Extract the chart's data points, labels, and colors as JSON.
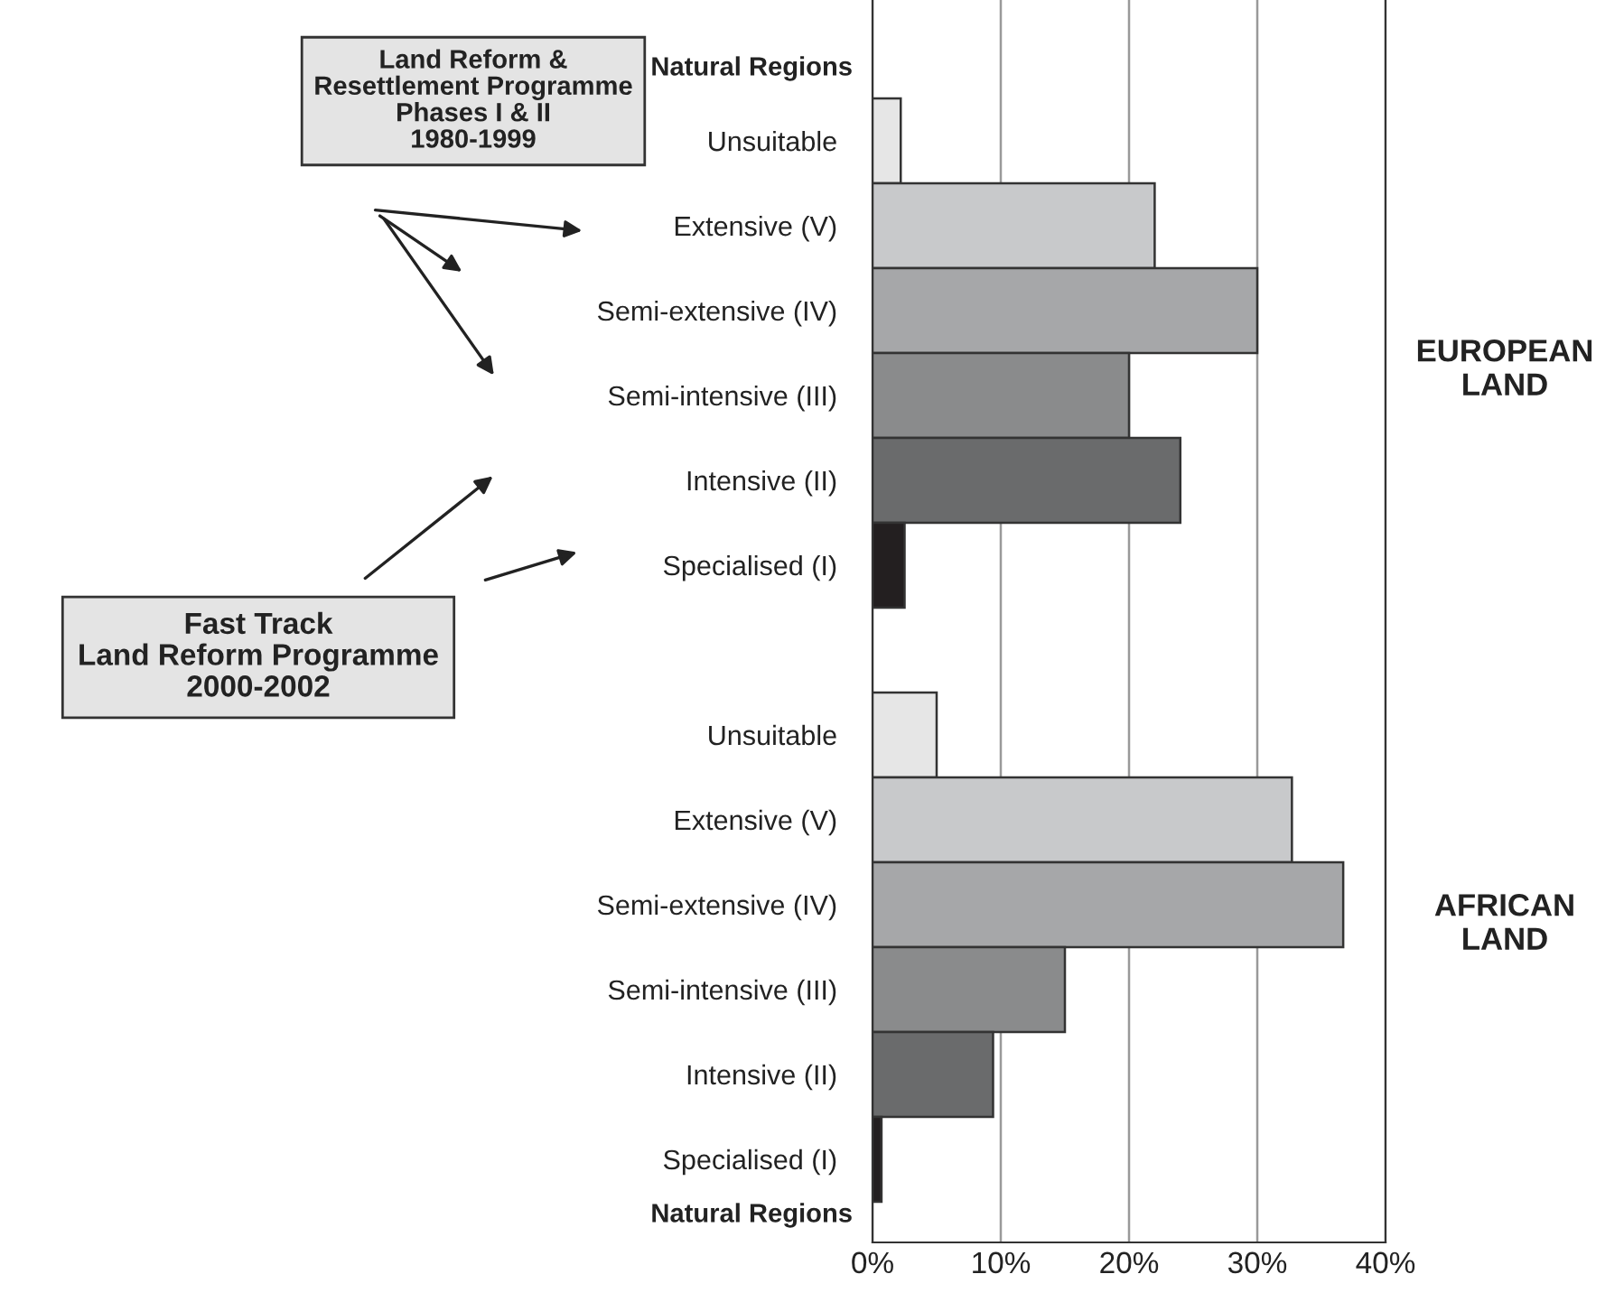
{
  "chart_data": {
    "type": "bar",
    "orientation": "horizontal",
    "categories": [
      "Unsuitable",
      "Extensive (V)",
      "Semi-extensive (IV)",
      "Semi-intensive (III)",
      "Intensive (II)",
      "Specialised (I)",
      null,
      "Unsuitable",
      "Extensive (V)",
      "Semi-extensive (IV)",
      "Semi-intensive (III)",
      "Intensive (II)",
      "Specialised (I)"
    ],
    "values": [
      2.2,
      22,
      30,
      20,
      24,
      2.5,
      null,
      5,
      32.7,
      36.7,
      15,
      9.4,
      0.7
    ],
    "colors": [
      "#e6e6e6",
      "#c8c9cb",
      "#a6a7a9",
      "#8a8b8c",
      "#6a6b6c",
      "#231f20",
      "#ffffff",
      "#e6e6e6",
      "#c8c9cb",
      "#a6a7a9",
      "#8a8b8c",
      "#6a6b6c",
      "#231f20"
    ],
    "xlim": [
      0,
      40
    ],
    "xticks": [
      {
        "value": 0,
        "label": "0%"
      },
      {
        "value": 10,
        "label": "10%"
      },
      {
        "value": 20,
        "label": "20%"
      },
      {
        "value": 30,
        "label": "30%"
      },
      {
        "value": 40,
        "label": "40%"
      }
    ],
    "grid": "x",
    "annotations": [
      "Natural Regions",
      "Natural Regions",
      "EUROPEAN\nLAND",
      "AFRICAN\nLAND",
      "Land Reform &\nResettlement Programme\nPhases I & II\n1980-1999",
      "Fast Track\nLand Reform Programme\n2000-2002"
    ]
  }
}
